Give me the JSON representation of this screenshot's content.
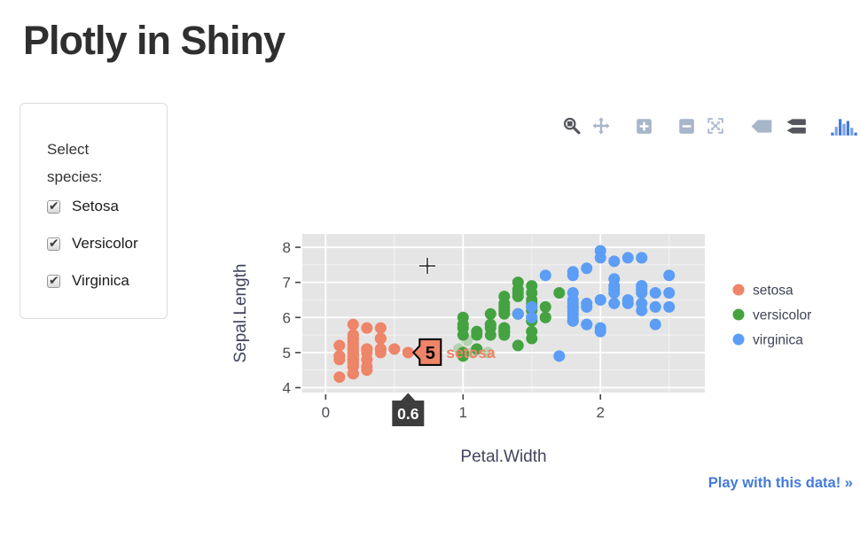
{
  "header": {
    "title": "Plotly in Shiny"
  },
  "sidebar": {
    "label": "Select species:",
    "options": [
      {
        "label": "Setosa",
        "checked": true
      },
      {
        "label": "Versicolor",
        "checked": true
      },
      {
        "label": "Virginica",
        "checked": true
      }
    ]
  },
  "modebar": {
    "buttons": [
      {
        "icon": "zoom-icon",
        "active": true
      },
      {
        "icon": "pan-icon",
        "active": false
      },
      {
        "icon": "zoom-in-icon",
        "active": false
      },
      {
        "icon": "zoom-out-icon",
        "active": false
      },
      {
        "icon": "autoscale-icon",
        "active": false
      },
      {
        "icon": "hover-closest-icon",
        "active": false
      },
      {
        "icon": "hover-compare-icon",
        "active": true
      },
      {
        "icon": "plotly-logo-icon",
        "active": false
      }
    ],
    "colors": {
      "active": "#55565d",
      "inactive": "#a8b6ca",
      "logo_dark": "#447adb",
      "logo_light": "#7ba3e8"
    }
  },
  "chart_data": {
    "type": "scatter",
    "title": "",
    "xlabel": "Petal.Width",
    "ylabel": "Sepal.Length",
    "xlim": [
      -0.17,
      2.76
    ],
    "ylim": [
      3.86,
      8.38
    ],
    "x_ticks": [
      0,
      1,
      2
    ],
    "y_ticks": [
      4,
      5,
      6,
      7,
      8
    ],
    "x_minor_ticks": [
      0.5,
      1.5,
      2.5
    ],
    "y_minor_ticks": [
      4.5,
      5.5,
      6.5,
      7.5
    ],
    "grid": true,
    "legend_position": "right",
    "marker_size": 13,
    "colors": {
      "plot_bg": "#e5e5e5",
      "grid": "#ffffff",
      "tick_mark": "#444444",
      "tick_text": "#4c4c52",
      "axis_title": "#42455c",
      "legend_text": "#3f4455",
      "hover_box_border": "#000000",
      "axis_hover_bg": "#3d3d3d",
      "axis_hover_text": "#ffffff",
      "crosshair": "#111111"
    },
    "series": [
      {
        "name": "setosa",
        "color": "#ee8468",
        "x": [
          0.2,
          0.2,
          0.2,
          0.2,
          0.2,
          0.4,
          0.3,
          0.2,
          0.2,
          0.1,
          0.2,
          0.2,
          0.1,
          0.1,
          0.2,
          0.4,
          0.4,
          0.3,
          0.3,
          0.3,
          0.2,
          0.4,
          0.2,
          0.5,
          0.2,
          0.2,
          0.4,
          0.2,
          0.2,
          0.2,
          0.2,
          0.4,
          0.1,
          0.2,
          0.2,
          0.2,
          0.2,
          0.1,
          0.2,
          0.2,
          0.3,
          0.3,
          0.2,
          0.6,
          0.4,
          0.3,
          0.2,
          0.2,
          0.2,
          0.2
        ],
        "y": [
          5.1,
          4.9,
          4.7,
          4.6,
          5.0,
          5.4,
          4.6,
          5.0,
          4.4,
          4.9,
          5.4,
          4.8,
          4.8,
          4.3,
          5.8,
          5.7,
          5.4,
          5.1,
          5.7,
          5.1,
          5.4,
          5.1,
          4.6,
          5.1,
          4.8,
          5.0,
          5.0,
          5.2,
          5.2,
          4.7,
          4.8,
          5.4,
          5.2,
          5.5,
          4.9,
          5.0,
          5.5,
          4.9,
          4.4,
          5.1,
          5.0,
          4.5,
          4.4,
          5.0,
          5.1,
          4.8,
          5.1,
          4.6,
          5.3,
          5.0
        ]
      },
      {
        "name": "versicolor",
        "color": "#44a340",
        "x": [
          1.4,
          1.5,
          1.5,
          1.3,
          1.5,
          1.3,
          1.6,
          1.0,
          1.3,
          1.4,
          1.0,
          1.5,
          1.0,
          1.4,
          1.3,
          1.4,
          1.5,
          1.0,
          1.5,
          1.1,
          1.8,
          1.3,
          1.5,
          1.2,
          1.3,
          1.4,
          1.4,
          1.7,
          1.5,
          1.0,
          1.1,
          1.0,
          1.2,
          1.6,
          1.5,
          1.6,
          1.5,
          1.3,
          1.3,
          1.3,
          1.2,
          1.4,
          1.2,
          1.0,
          1.3,
          1.2,
          1.3,
          1.3,
          1.1,
          1.3
        ],
        "y": [
          7.0,
          6.4,
          6.9,
          5.5,
          6.5,
          5.7,
          6.3,
          4.9,
          6.6,
          5.2,
          5.0,
          5.9,
          6.0,
          6.1,
          5.6,
          6.7,
          5.6,
          5.8,
          6.2,
          5.6,
          5.9,
          6.1,
          6.3,
          6.1,
          6.4,
          6.6,
          6.8,
          6.7,
          6.0,
          5.7,
          5.5,
          5.5,
          5.8,
          6.0,
          5.4,
          6.0,
          6.7,
          6.3,
          5.6,
          5.5,
          5.5,
          6.1,
          5.8,
          5.0,
          5.6,
          5.7,
          5.7,
          6.2,
          5.1,
          5.7
        ]
      },
      {
        "name": "virginica",
        "color": "#5c9df5",
        "x": [
          2.5,
          1.9,
          2.1,
          1.8,
          2.2,
          2.1,
          1.7,
          1.8,
          1.8,
          2.5,
          2.0,
          1.9,
          2.1,
          2.0,
          2.4,
          2.3,
          1.8,
          2.2,
          2.3,
          1.5,
          2.3,
          2.0,
          2.0,
          1.8,
          2.1,
          1.8,
          1.8,
          1.8,
          2.1,
          1.6,
          1.9,
          2.0,
          2.2,
          1.5,
          1.4,
          2.3,
          2.4,
          1.8,
          1.8,
          2.1,
          2.4,
          2.3,
          1.9,
          2.3,
          2.5,
          2.3,
          1.9,
          2.0,
          2.3,
          1.8
        ],
        "y": [
          6.3,
          5.8,
          7.1,
          6.3,
          6.5,
          7.6,
          4.9,
          7.3,
          6.7,
          7.2,
          6.5,
          6.4,
          6.8,
          5.7,
          5.8,
          6.4,
          6.5,
          7.7,
          7.7,
          6.0,
          6.9,
          5.6,
          7.7,
          6.3,
          6.7,
          7.2,
          6.2,
          6.1,
          6.4,
          7.2,
          7.4,
          7.9,
          6.4,
          6.3,
          6.1,
          7.7,
          6.3,
          6.4,
          6.0,
          6.9,
          6.7,
          6.9,
          5.8,
          6.8,
          6.7,
          6.7,
          6.3,
          6.5,
          6.2,
          5.9
        ]
      }
    ],
    "faded_markers": {
      "series": "versicolor",
      "opacity": 0.3,
      "x": [
        0.97,
        1.07,
        1.18,
        1.03
      ],
      "y": [
        5.1,
        5.0,
        5.0,
        5.35
      ]
    },
    "hover": {
      "point": {
        "series": "setosa",
        "x": 0.6,
        "y": 5.0,
        "label": "5"
      },
      "x_axis_label": "0.6",
      "crosshair": {
        "x": 0.74,
        "y": 7.47
      }
    }
  },
  "footer": {
    "play_link": "Play with this data! »"
  }
}
